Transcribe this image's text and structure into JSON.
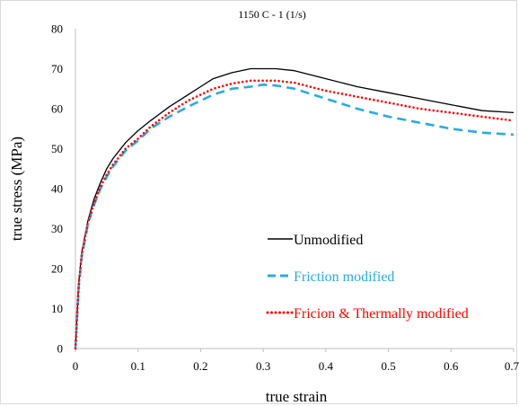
{
  "chart_data": {
    "type": "line",
    "title": "1150 C - 1 (1/s)",
    "xlabel": "true strain",
    "ylabel": "true stress (MPa)",
    "xlim": [
      0,
      0.7
    ],
    "ylim": [
      0,
      80
    ],
    "xticks": [
      "0",
      "0.1",
      "0.2",
      "0.3",
      "0.4",
      "0.5",
      "0.6",
      "0.7"
    ],
    "yticks": [
      "0",
      "10",
      "20",
      "30",
      "40",
      "50",
      "60",
      "70",
      "80"
    ],
    "grid": false,
    "legend_position": "right-middle",
    "series": [
      {
        "name": "Unmodified",
        "color": "#000000",
        "style": "solid",
        "x": [
          0,
          0.005,
          0.01,
          0.02,
          0.03,
          0.04,
          0.05,
          0.06,
          0.08,
          0.1,
          0.12,
          0.15,
          0.18,
          0.2,
          0.22,
          0.25,
          0.28,
          0.3,
          0.32,
          0.35,
          0.4,
          0.45,
          0.5,
          0.55,
          0.6,
          0.65,
          0.7
        ],
        "y": [
          0,
          16,
          24,
          32,
          37.5,
          41.5,
          45,
          47.5,
          51.5,
          54.5,
          57,
          60.5,
          63.5,
          65.5,
          67.5,
          69,
          70,
          70,
          70,
          69.5,
          67.5,
          65.5,
          64,
          62.5,
          61,
          59.5,
          59
        ]
      },
      {
        "name": "Friction modified",
        "color": "#29abe2",
        "style": "dashed",
        "x": [
          0,
          0.005,
          0.01,
          0.02,
          0.03,
          0.04,
          0.05,
          0.06,
          0.08,
          0.1,
          0.12,
          0.15,
          0.18,
          0.2,
          0.22,
          0.25,
          0.28,
          0.3,
          0.32,
          0.35,
          0.4,
          0.45,
          0.5,
          0.55,
          0.6,
          0.65,
          0.7
        ],
        "y": [
          0,
          15,
          23,
          31,
          36,
          40,
          43,
          45.5,
          49.5,
          52,
          55,
          58,
          60.5,
          62,
          63.5,
          65,
          65.5,
          66,
          65.8,
          65,
          62.5,
          60,
          58,
          56.5,
          55,
          54,
          53.5
        ]
      },
      {
        "name": "Fricion & Thermally modified",
        "color": "#ff0000",
        "style": "dotted",
        "x": [
          0,
          0.005,
          0.01,
          0.02,
          0.03,
          0.04,
          0.05,
          0.06,
          0.08,
          0.1,
          0.12,
          0.15,
          0.18,
          0.2,
          0.22,
          0.25,
          0.28,
          0.3,
          0.32,
          0.35,
          0.4,
          0.45,
          0.5,
          0.55,
          0.6,
          0.65,
          0.7
        ],
        "y": [
          0,
          15.5,
          23.5,
          31.5,
          36.5,
          40.5,
          43.5,
          46,
          50,
          52.5,
          55.5,
          59,
          62,
          63.5,
          65,
          66.3,
          67,
          67,
          67,
          66.5,
          64.5,
          63,
          61.5,
          60,
          59,
          58,
          57
        ]
      }
    ]
  }
}
